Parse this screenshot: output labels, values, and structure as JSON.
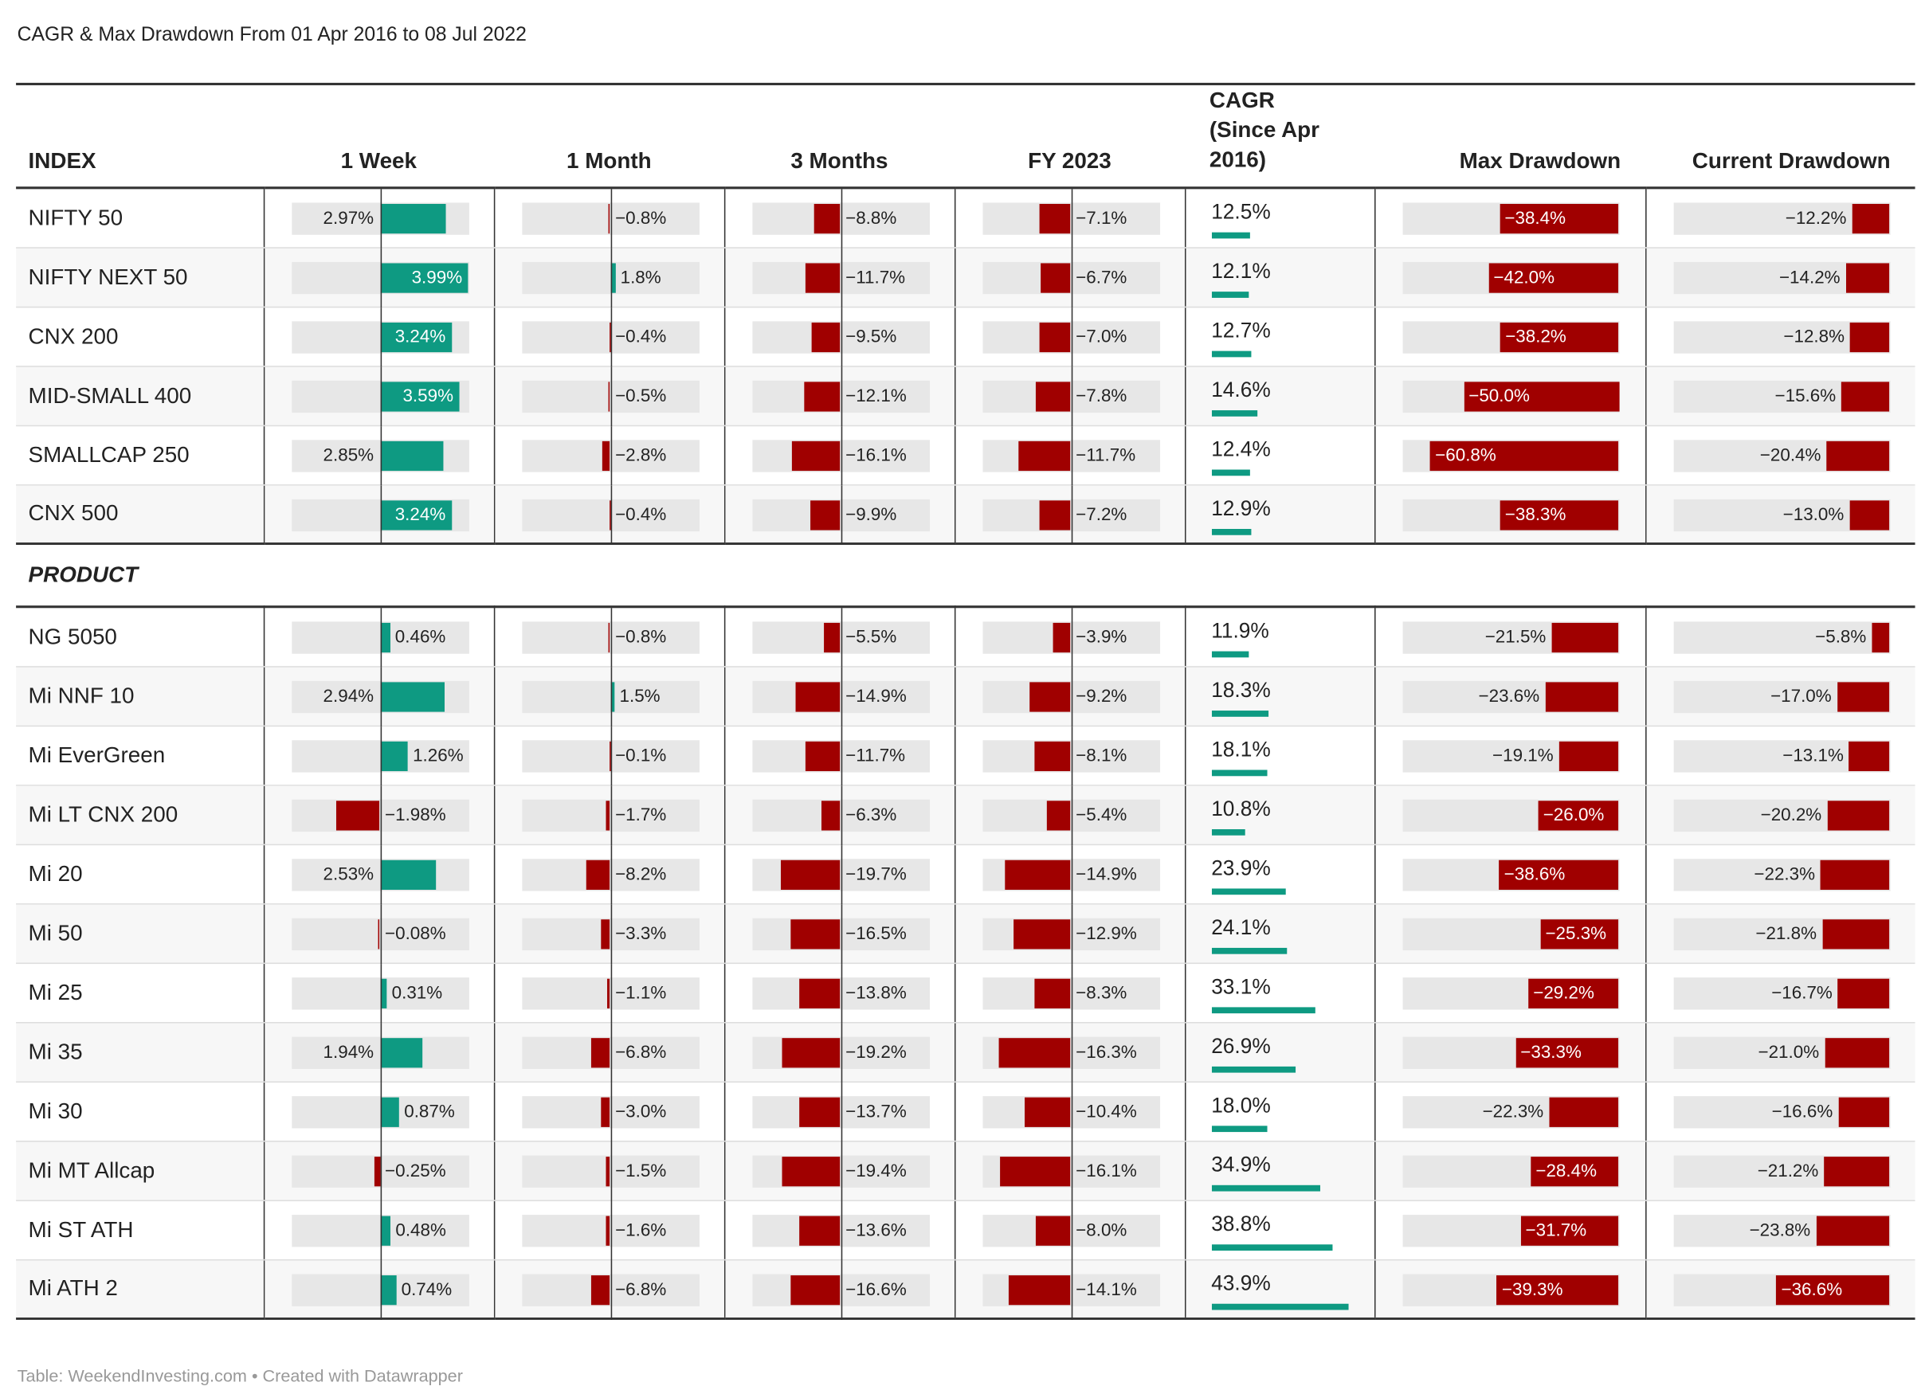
{
  "title": "CAGR & Max Drawdown From 01 Apr 2016 to 08 Jul 2022",
  "source": "Table: WeekendInvesting.com • Created with Datawrapper",
  "colors": {
    "positive": "#0e9a82",
    "negative": "#a00000",
    "track": "#e7e7e7"
  },
  "headers": {
    "index": "INDEX",
    "week": "1 Week",
    "month": "1 Month",
    "months3": "3 Months",
    "fy": "FY 2023",
    "cagr_line1": "CAGR",
    "cagr_line2": "(Since Apr",
    "cagr_line3": "2016)",
    "maxdd": "Max Drawdown",
    "curdd": "Current Drawdown"
  },
  "section_label": "PRODUCT",
  "chart_data": {
    "type": "table",
    "columns": [
      "INDEX",
      "1 Week",
      "1 Month",
      "3 Months",
      "FY 2023",
      "CAGR (Since Apr 2016)",
      "Max Drawdown",
      "Current Drawdown"
    ],
    "units": "%",
    "groups": [
      {
        "name": "INDEX",
        "rows": [
          {
            "name": "NIFTY 50",
            "week": 2.97,
            "month": -0.8,
            "m3": -8.8,
            "fy": -7.1,
            "cagr": 12.5,
            "maxdd": -38.4,
            "curdd": -12.2
          },
          {
            "name": "NIFTY NEXT 50",
            "week": 3.99,
            "month": 1.8,
            "m3": -11.7,
            "fy": -6.7,
            "cagr": 12.1,
            "maxdd": -42.0,
            "curdd": -14.2
          },
          {
            "name": "CNX 200",
            "week": 3.24,
            "month": -0.4,
            "m3": -9.5,
            "fy": -7.0,
            "cagr": 12.7,
            "maxdd": -38.2,
            "curdd": -12.8
          },
          {
            "name": "MID-SMALL 400",
            "week": 3.59,
            "month": -0.5,
            "m3": -12.1,
            "fy": -7.8,
            "cagr": 14.6,
            "maxdd": -50.0,
            "curdd": -15.6
          },
          {
            "name": "SMALLCAP 250",
            "week": 2.85,
            "month": -2.8,
            "m3": -16.1,
            "fy": -11.7,
            "cagr": 12.4,
            "maxdd": -60.8,
            "curdd": -20.4
          },
          {
            "name": "CNX 500",
            "week": 3.24,
            "month": -0.4,
            "m3": -9.9,
            "fy": -7.2,
            "cagr": 12.9,
            "maxdd": -38.3,
            "curdd": -13.0
          }
        ]
      },
      {
        "name": "PRODUCT",
        "rows": [
          {
            "name": "NG 5050",
            "week": 0.46,
            "month": -0.8,
            "m3": -5.5,
            "fy": -3.9,
            "cagr": 11.9,
            "maxdd": -21.5,
            "curdd": -5.8
          },
          {
            "name": "Mi NNF 10",
            "week": 2.94,
            "month": 1.5,
            "m3": -14.9,
            "fy": -9.2,
            "cagr": 18.3,
            "maxdd": -23.6,
            "curdd": -17.0
          },
          {
            "name": "Mi EverGreen",
            "week": 1.26,
            "month": -0.1,
            "m3": -11.7,
            "fy": -8.1,
            "cagr": 18.1,
            "maxdd": -19.1,
            "curdd": -13.1
          },
          {
            "name": "Mi LT CNX 200",
            "week": -1.98,
            "month": -1.7,
            "m3": -6.3,
            "fy": -5.4,
            "cagr": 10.8,
            "maxdd": -26.0,
            "curdd": -20.2
          },
          {
            "name": "Mi 20",
            "week": 2.53,
            "month": -8.2,
            "m3": -19.7,
            "fy": -14.9,
            "cagr": 23.9,
            "maxdd": -38.6,
            "curdd": -22.3
          },
          {
            "name": "Mi 50",
            "week": -0.08,
            "month": -3.3,
            "m3": -16.5,
            "fy": -12.9,
            "cagr": 24.1,
            "maxdd": -25.3,
            "curdd": -21.8
          },
          {
            "name": "Mi 25",
            "week": 0.31,
            "month": -1.1,
            "m3": -13.8,
            "fy": -8.3,
            "cagr": 33.1,
            "maxdd": -29.2,
            "curdd": -16.7
          },
          {
            "name": "Mi 35",
            "week": 1.94,
            "month": -6.8,
            "m3": -19.2,
            "fy": -16.3,
            "cagr": 26.9,
            "maxdd": -33.3,
            "curdd": -21.0
          },
          {
            "name": "Mi 30",
            "week": 0.87,
            "month": -3.0,
            "m3": -13.7,
            "fy": -10.4,
            "cagr": 18.0,
            "maxdd": -22.3,
            "curdd": -16.6
          },
          {
            "name": "Mi MT Allcap",
            "week": -0.25,
            "month": -1.5,
            "m3": -19.4,
            "fy": -16.1,
            "cagr": 34.9,
            "maxdd": -28.4,
            "curdd": -21.2
          },
          {
            "name": "Mi ST ATH",
            "week": 0.48,
            "month": -1.6,
            "m3": -13.6,
            "fy": -8.0,
            "cagr": 38.8,
            "maxdd": -31.7,
            "curdd": -23.8
          },
          {
            "name": "Mi ATH 2",
            "week": 0.74,
            "month": -6.8,
            "m3": -16.6,
            "fy": -14.1,
            "cagr": 43.9,
            "maxdd": -39.3,
            "curdd": -36.6
          }
        ]
      }
    ]
  }
}
